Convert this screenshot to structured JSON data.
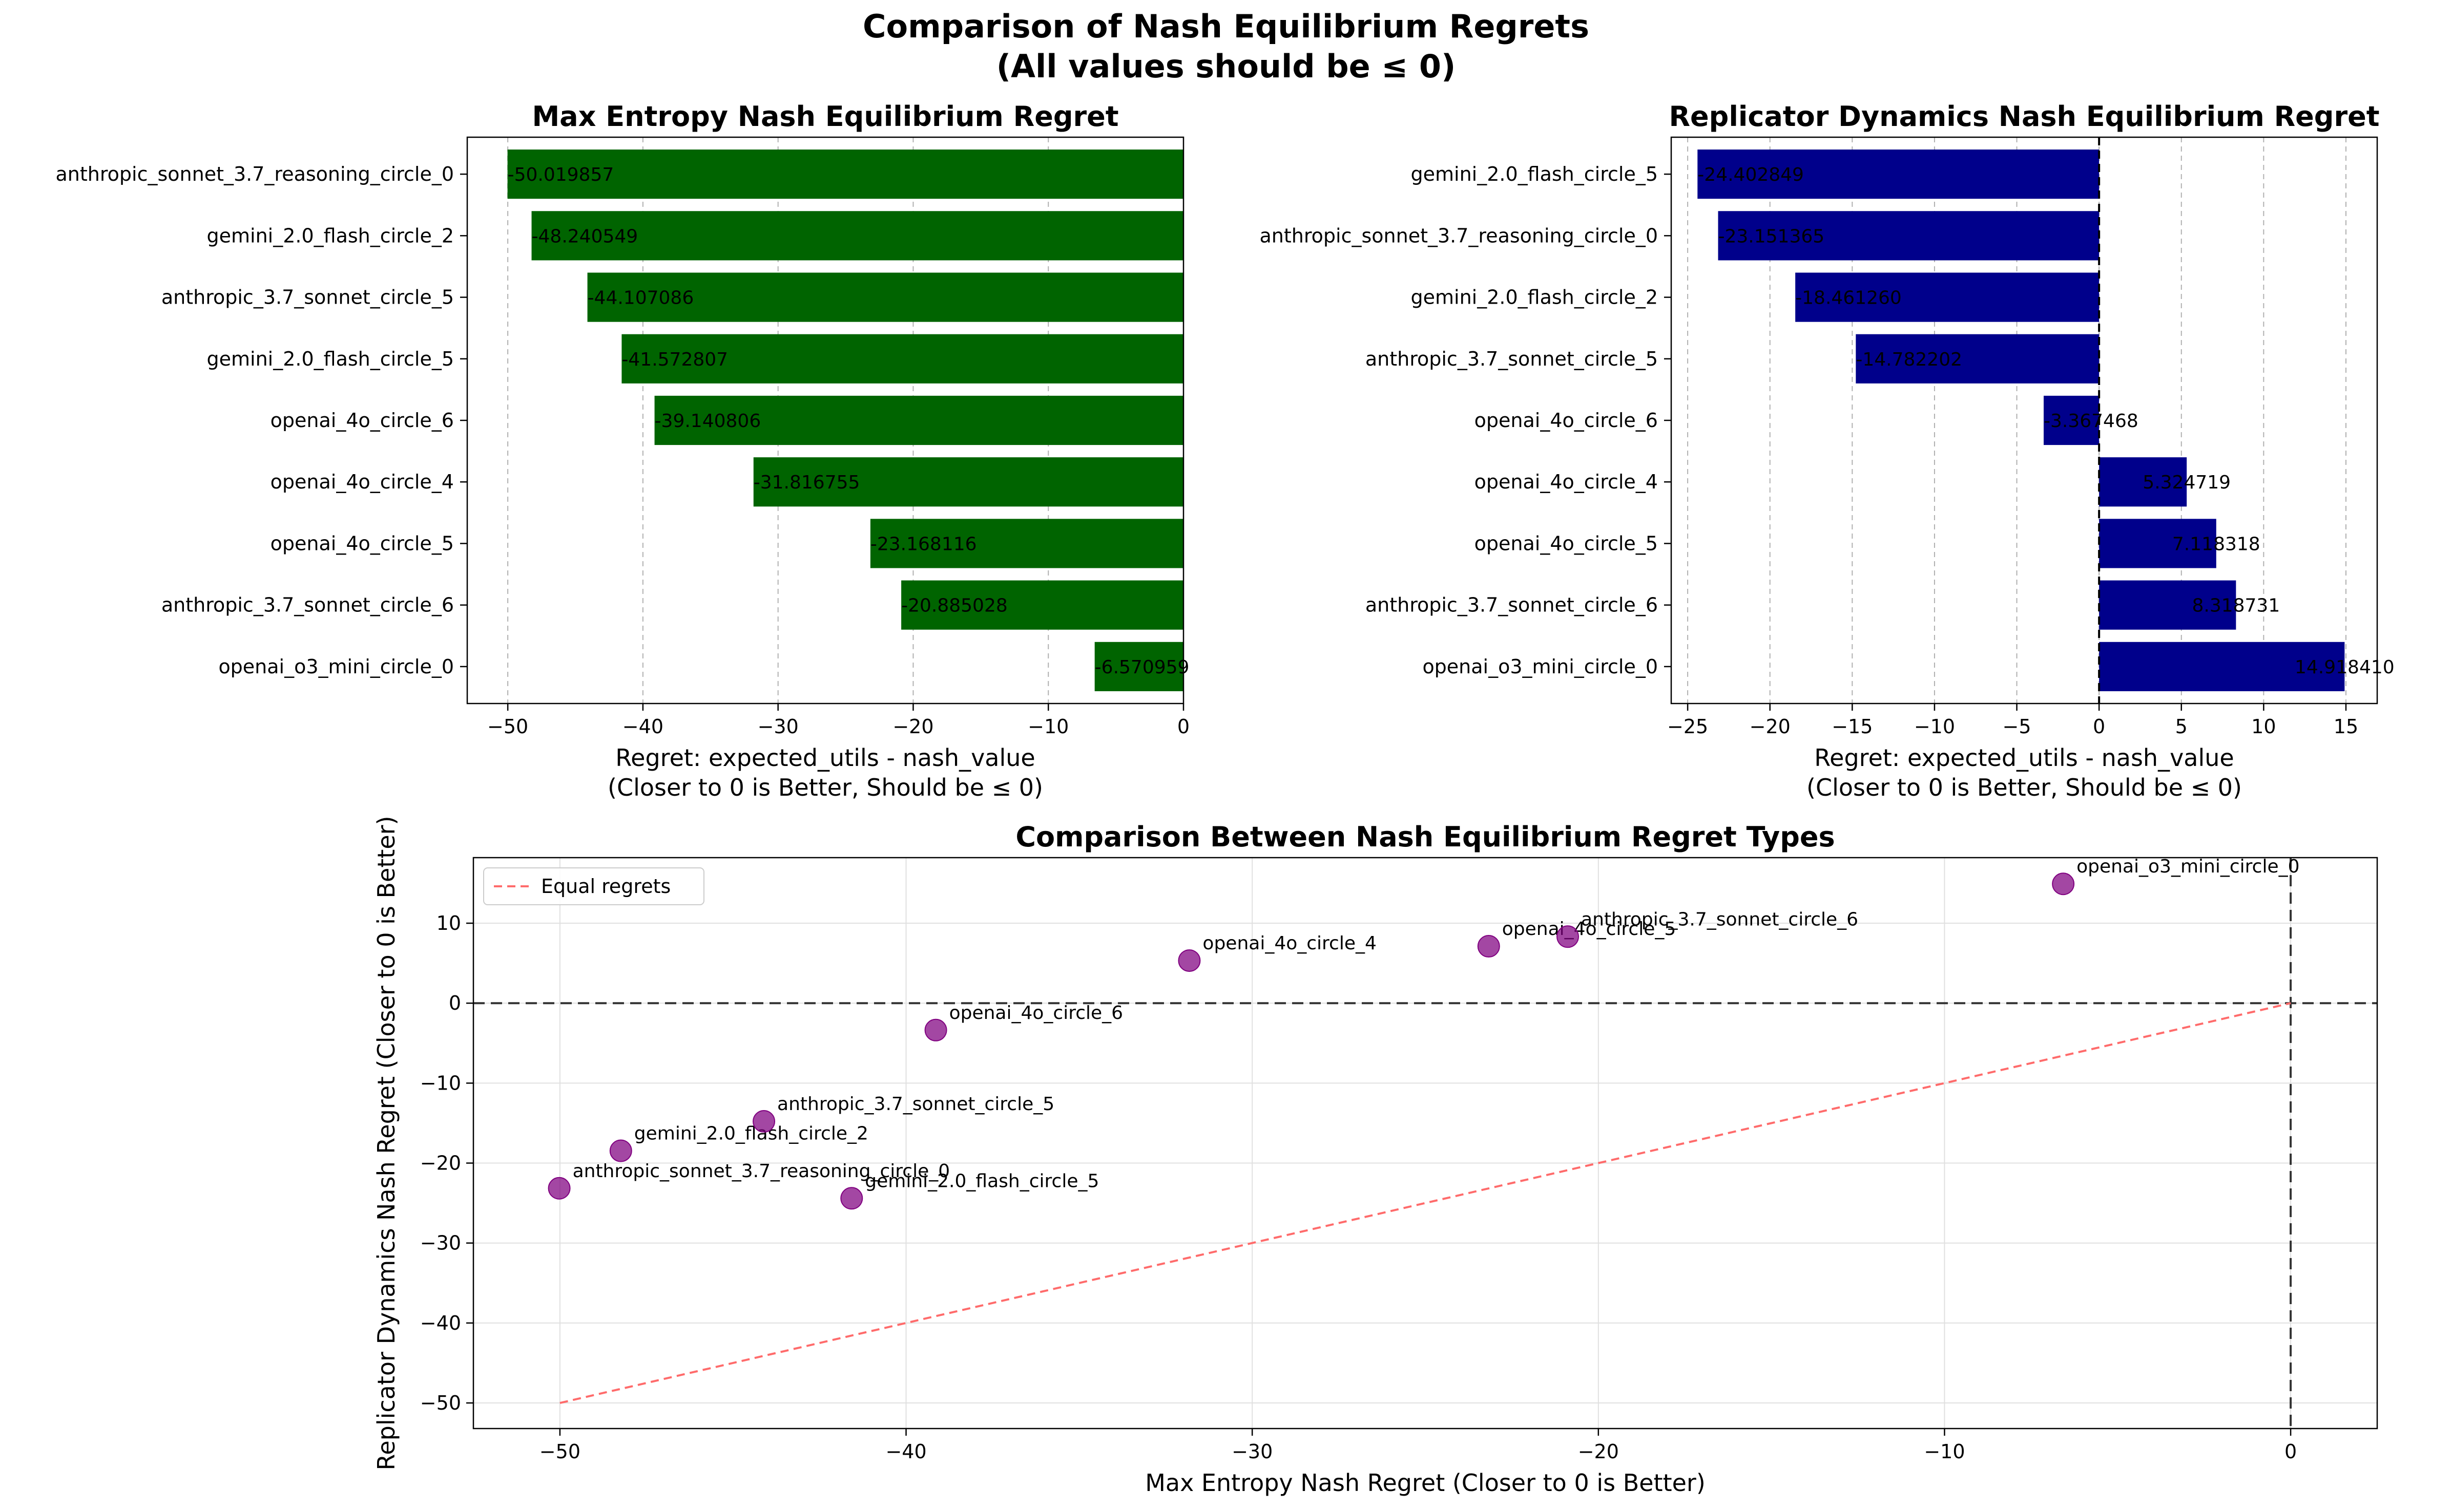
{
  "suptitle": {
    "line1": "Comparison of Nash Equilibrium Regrets",
    "line2": "(All values should be ≤ 0)"
  },
  "chart_data": [
    {
      "type": "bar",
      "orientation": "horizontal",
      "title": "Max Entropy Nash Equilibrium Regret",
      "xlabel_line1": "Regret: expected_utils - nash_value",
      "xlabel_line2": "(Closer to 0 is Better, Should be ≤ 0)",
      "categories": [
        "anthropic_sonnet_3.7_reasoning_circle_0",
        "gemini_2.0_flash_circle_2",
        "anthropic_3.7_sonnet_circle_5",
        "gemini_2.0_flash_circle_5",
        "openai_4o_circle_6",
        "openai_4o_circle_4",
        "openai_4o_circle_5",
        "anthropic_3.7_sonnet_circle_6",
        "openai_o3_mini_circle_0"
      ],
      "values": [
        -50.019857,
        -48.240549,
        -44.107086,
        -41.572807,
        -39.140806,
        -31.816755,
        -23.168116,
        -20.885028,
        -6.570959
      ],
      "labels": [
        "-50.019857",
        "-48.240549",
        "-44.107086",
        "-41.572807",
        "-39.140806",
        "-31.816755",
        "-23.168116",
        "-20.885028",
        "-6.570959"
      ],
      "xlim": [
        -53.0,
        0.0
      ],
      "xticks": [
        -50,
        -40,
        -30,
        -20,
        -10,
        0
      ],
      "xtick_labels": [
        "−50",
        "−40",
        "−30",
        "−20",
        "−10",
        "0"
      ],
      "bar_color": "#006400",
      "grid": "x dashed"
    },
    {
      "type": "bar",
      "orientation": "horizontal",
      "title": "Replicator Dynamics Nash Equilibrium Regret",
      "xlabel_line1": "Regret: expected_utils - nash_value",
      "xlabel_line2": "(Closer to 0 is Better, Should be ≤ 0)",
      "categories": [
        "gemini_2.0_flash_circle_5",
        "anthropic_sonnet_3.7_reasoning_circle_0",
        "gemini_2.0_flash_circle_2",
        "anthropic_3.7_sonnet_circle_5",
        "openai_4o_circle_6",
        "openai_4o_circle_4",
        "openai_4o_circle_5",
        "anthropic_3.7_sonnet_circle_6",
        "openai_o3_mini_circle_0"
      ],
      "values": [
        -24.402849,
        -23.151365,
        -18.46126,
        -14.782202,
        -3.367468,
        5.324719,
        7.118318,
        8.318731,
        14.91841
      ],
      "labels": [
        "-24.402849",
        "-23.151365",
        "-18.461260",
        "-14.782202",
        "-3.367468",
        "5.324719",
        "7.118318",
        "8.318731",
        "14.918410"
      ],
      "xlim": [
        -26.0,
        16.9
      ],
      "xticks": [
        -25,
        -20,
        -15,
        -10,
        -5,
        0,
        5,
        10,
        15
      ],
      "xtick_labels": [
        "−25",
        "−20",
        "−15",
        "−10",
        "−5",
        "0",
        "5",
        "10",
        "15"
      ],
      "bar_color": "#00008B",
      "zero_line": "dashed",
      "grid": "x dashed"
    },
    {
      "type": "scatter",
      "title": "Comparison Between Nash Equilibrium Regret Types",
      "xlabel": "Max Entropy Nash Regret (Closer to 0 is Better)",
      "ylabel": "Replicator Dynamics Nash Regret (Closer to 0 is Better)",
      "points": [
        {
          "label": "anthropic_sonnet_3.7_reasoning_circle_0",
          "x": -50.019857,
          "y": -23.151365
        },
        {
          "label": "gemini_2.0_flash_circle_2",
          "x": -48.240549,
          "y": -18.46126
        },
        {
          "label": "anthropic_3.7_sonnet_circle_5",
          "x": -44.107086,
          "y": -14.782202
        },
        {
          "label": "gemini_2.0_flash_circle_5",
          "x": -41.572807,
          "y": -24.402849
        },
        {
          "label": "openai_4o_circle_6",
          "x": -39.140806,
          "y": -3.367468
        },
        {
          "label": "openai_4o_circle_4",
          "x": -31.816755,
          "y": 5.324719
        },
        {
          "label": "openai_4o_circle_5",
          "x": -23.168116,
          "y": 7.118318
        },
        {
          "label": "anthropic_3.7_sonnet_circle_6",
          "x": -20.885028,
          "y": 8.318731
        },
        {
          "label": "openai_o3_mini_circle_0",
          "x": -6.570959,
          "y": 14.91841
        }
      ],
      "reference_line": {
        "name": "Equal regrets",
        "x": [
          -50,
          0
        ],
        "y": [
          -50,
          0
        ],
        "color": "#ff6b6b",
        "style": "dashed"
      },
      "zero_lines": "dashed at x=0 and y=0",
      "xlim": [
        -52.5,
        2.5
      ],
      "ylim": [
        -53.2,
        18.2
      ],
      "xticks": [
        -50,
        -40,
        -30,
        -20,
        -10,
        0
      ],
      "xtick_labels": [
        "−50",
        "−40",
        "−30",
        "−20",
        "−10",
        "0"
      ],
      "yticks": [
        -50,
        -40,
        -30,
        -20,
        -10,
        0,
        10
      ],
      "ytick_labels": [
        "−50",
        "−40",
        "−30",
        "−20",
        "−10",
        "0",
        "10"
      ],
      "point_color": "#800080",
      "legend": {
        "placement": "top-left",
        "entries": [
          "Equal regrets"
        ]
      },
      "grid": "both"
    }
  ]
}
